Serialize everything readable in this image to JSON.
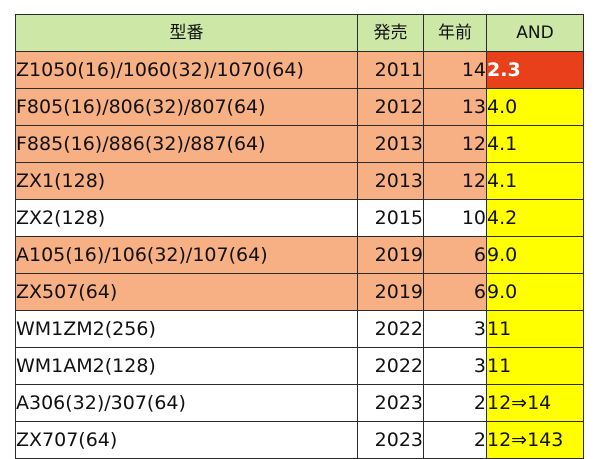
{
  "table": {
    "headers": {
      "model": "型番",
      "year": "発売",
      "ago": "年前",
      "and": "AND"
    },
    "rows": [
      {
        "model": "Z1050(16)/1060(32)/1070(64)",
        "year": "2011",
        "ago": "14",
        "and": "2.3",
        "highlight": true,
        "and_style": "red"
      },
      {
        "model": "F805(16)/806(32)/807(64)",
        "year": "2012",
        "ago": "13",
        "and": "4.0",
        "highlight": true,
        "and_style": "yellow"
      },
      {
        "model": "F885(16)/886(32)/887(64)",
        "year": "2013",
        "ago": "12",
        "and": "4.1",
        "highlight": true,
        "and_style": "yellow"
      },
      {
        "model": "ZX1(128)",
        "year": "2013",
        "ago": "12",
        "and": "4.1",
        "highlight": true,
        "and_style": "yellow"
      },
      {
        "model": "ZX2(128)",
        "year": "2015",
        "ago": "10",
        "and": "4.2",
        "highlight": false,
        "and_style": "yellow"
      },
      {
        "model": "A105(16)/106(32)/107(64)",
        "year": "2019",
        "ago": "6",
        "and": "9.0",
        "highlight": true,
        "and_style": "yellow"
      },
      {
        "model": "ZX507(64)",
        "year": "2019",
        "ago": "6",
        "and": "9.0",
        "highlight": true,
        "and_style": "yellow"
      },
      {
        "model": "WM1ZM2(256)",
        "year": "2022",
        "ago": "3",
        "and": "11",
        "highlight": false,
        "and_style": "yellow"
      },
      {
        "model": "WM1AM2(128)",
        "year": "2022",
        "ago": "3",
        "and": "11",
        "highlight": false,
        "and_style": "yellow"
      },
      {
        "model": "A306(32)/307(64)",
        "year": "2023",
        "ago": "2",
        "and": "12⇒14",
        "highlight": false,
        "and_style": "yellow"
      },
      {
        "model": "ZX707(64)",
        "year": "2023",
        "ago": "2",
        "and": "12⇒143",
        "highlight": false,
        "and_style": "yellow"
      }
    ]
  },
  "colors": {
    "header_bg": "#cde8a6",
    "highlight_row_bg": "#f7b083",
    "and_bg": "#ffff00",
    "and_alert_bg": "#e8401b"
  }
}
